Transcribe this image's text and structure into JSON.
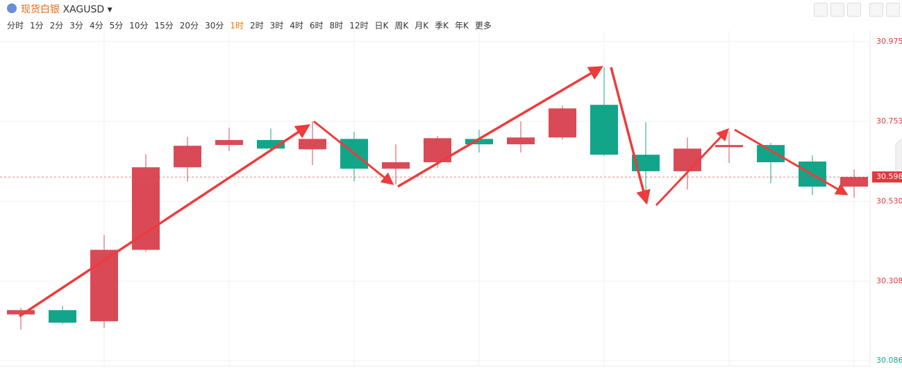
{
  "header": {
    "title": "现货白银",
    "symbol": "XAGUSD",
    "intervals": [
      "分时",
      "1分",
      "2分",
      "3分",
      "4分",
      "5分",
      "10分",
      "15分",
      "20分",
      "30分",
      "1时",
      "2时",
      "3时",
      "4时",
      "6时",
      "8时",
      "12时",
      "日K",
      "周K",
      "月K",
      "季K",
      "年K",
      "更多"
    ],
    "active_interval": 10
  },
  "chart_data": {
    "type": "candlestick",
    "categories": [
      null,
      null,
      null,
      null,
      null,
      null,
      null,
      null,
      null,
      null,
      null,
      null,
      null,
      null,
      null,
      null,
      null,
      null,
      null,
      null,
      null
    ],
    "open": [
      30.215,
      30.227,
      30.196,
      30.395,
      30.625,
      30.687,
      30.701,
      30.675,
      30.704,
      30.621,
      30.639,
      30.704,
      30.689,
      30.708,
      30.799,
      30.66,
      30.614,
      30.681,
      30.687,
      30.641,
      30.571
    ],
    "close": [
      30.227,
      30.192,
      30.395,
      30.625,
      30.685,
      30.701,
      30.677,
      30.704,
      30.621,
      30.639,
      30.706,
      30.689,
      30.708,
      30.789,
      30.66,
      30.614,
      30.677,
      30.687,
      30.639,
      30.571,
      30.598
    ],
    "high": [
      30.233,
      30.239,
      30.436,
      30.662,
      30.71,
      30.735,
      30.733,
      30.753,
      30.724,
      30.689,
      30.712,
      30.73,
      30.753,
      30.797,
      30.903,
      30.751,
      30.708,
      30.724,
      30.693,
      30.658,
      30.619
    ],
    "low": [
      30.173,
      30.188,
      30.177,
      30.389,
      30.585,
      30.67,
      30.668,
      30.631,
      30.586,
      30.577,
      30.623,
      30.666,
      30.666,
      30.702,
      30.656,
      30.54,
      30.563,
      30.637,
      30.581,
      30.548,
      30.54
    ],
    "up_color": "#d94a56",
    "down_color": "#13a58a",
    "ylim": [
      30.071,
      31.006
    ],
    "yticks": [
      30.086,
      30.308,
      {
        "value": 30.53,
        "label": "30.530"
      },
      30.753,
      30.975
    ],
    "ytick_colors": [
      "#13a58a",
      "#e0383e",
      "#e0383e",
      "#e0383e",
      "#e0383e"
    ],
    "last_price": 30.598,
    "last_price_color": "#e0383e",
    "grid": true
  }
}
